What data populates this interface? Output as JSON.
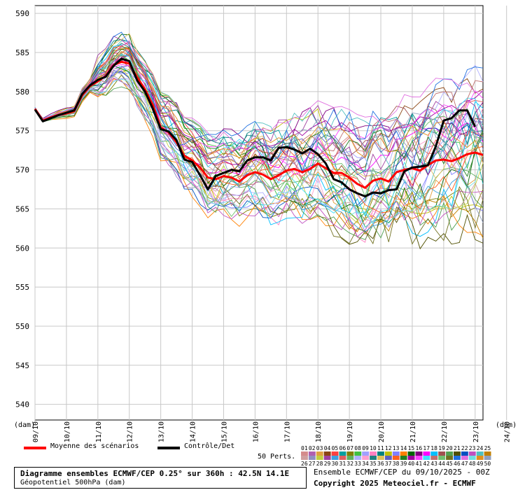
{
  "chart_data": {
    "type": "line",
    "yunit_left": "(dam)",
    "yunit_right": "(dam)",
    "ylim": [
      538,
      591
    ],
    "yticks": [
      540,
      545,
      550,
      555,
      560,
      565,
      570,
      575,
      580,
      585,
      590
    ],
    "xticks": [
      "09/10",
      "10/10",
      "11/10",
      "12/10",
      "13/10",
      "14/10",
      "15/10",
      "16/10",
      "17/10",
      "18/10",
      "19/10",
      "20/10",
      "21/10",
      "22/10",
      "23/10",
      "24/10"
    ],
    "grid": true,
    "x_step_hours": 6,
    "legend": {
      "mean_label": "Moyenne des scénarios",
      "control_label": "Contrôle/Det",
      "perts_label": "50 Perts.",
      "member_numbers_row1": [
        "01",
        "02",
        "03",
        "04",
        "05",
        "06",
        "07",
        "08",
        "09",
        "10",
        "11",
        "12",
        "13",
        "14",
        "15",
        "16",
        "17",
        "18",
        "19",
        "20",
        "21",
        "22",
        "23",
        "24",
        "25"
      ],
      "member_numbers_row2": [
        "26",
        "27",
        "28",
        "29",
        "30",
        "31",
        "32",
        "33",
        "34",
        "35",
        "36",
        "37",
        "38",
        "39",
        "40",
        "41",
        "42",
        "43",
        "44",
        "45",
        "46",
        "47",
        "48",
        "49",
        "50"
      ]
    },
    "series": [
      {
        "name": "Moyenne des scénarios",
        "color": "#ff0000",
        "values": [
          577.8,
          576.3,
          576.7,
          577.0,
          577.2,
          577.5,
          579.5,
          580.7,
          581.3,
          582.0,
          583.4,
          583.8,
          583.6,
          581.8,
          580.3,
          578.3,
          575.4,
          574.8,
          573.5,
          571.8,
          571.2,
          570.3,
          569.0,
          568.8,
          569.2,
          569.0,
          568.5,
          569.3,
          569.7,
          569.4,
          568.8,
          569.3,
          569.9,
          570.1,
          569.7,
          570.1,
          570.8,
          570.2,
          569.6,
          569.6,
          569.0,
          568.2,
          567.7,
          568.6,
          568.9,
          568.5,
          569.7,
          570.0,
          570.2,
          569.9,
          570.6,
          571.2,
          571.3,
          571.1,
          571.5,
          572.0,
          572.2,
          571.9
        ]
      },
      {
        "name": "Contrôle/Det",
        "color": "#000000",
        "values": [
          577.7,
          576.2,
          576.6,
          577.0,
          577.3,
          577.6,
          579.7,
          580.8,
          581.5,
          581.9,
          583.3,
          584.2,
          583.9,
          581.4,
          580.0,
          577.8,
          575.2,
          574.9,
          573.8,
          571.3,
          571.0,
          569.3,
          567.5,
          569.2,
          569.6,
          570.0,
          569.8,
          571.2,
          571.6,
          571.6,
          571.2,
          572.8,
          572.9,
          572.6,
          572.1,
          572.7,
          572.0,
          570.8,
          568.8,
          568.4,
          567.5,
          567.0,
          566.6,
          567.1,
          567.0,
          567.4,
          567.5,
          569.8,
          570.3,
          570.4,
          570.6,
          573.0,
          576.3,
          576.6,
          577.6,
          577.6,
          575.5
        ]
      }
    ],
    "members": {
      "count": 50,
      "colors": [
        "#d48c8c",
        "#b05fb0",
        "#e0a040",
        "#8b4513",
        "#ff4040",
        "#00a0a0",
        "#808000",
        "#40c040",
        "#a0a0ff",
        "#ff80c0",
        "#008080",
        "#c0c000",
        "#8080ff",
        "#ff8000",
        "#006400",
        "#800080",
        "#ff00ff",
        "#00c0ff",
        "#a05050",
        "#50a050",
        "#505000",
        "#0050c0",
        "#c050c0",
        "#50c0c0",
        "#c08000",
        "#d0a0a0",
        "#9090c0",
        "#c0d040",
        "#a040a0",
        "#40a0e0",
        "#e06060",
        "#60b060",
        "#b0b0ff",
        "#ffa0d0",
        "#208080",
        "#e0c060",
        "#6060c0",
        "#ff6020",
        "#208020",
        "#a000a0",
        "#ff40ff",
        "#40e0ff",
        "#c07070",
        "#70c070",
        "#707020",
        "#2070e0",
        "#e070e0",
        "#70e0e0",
        "#e09020",
        "#90a0c0"
      ]
    }
  },
  "footer": {
    "title_line": "Diagramme ensembles ECMWF/CEP 0.25° sur 360h : 42.5N 14.1E",
    "sub_line": "Géopotentiel 500hPa (dam)",
    "run_line": "Ensemble ECMWF/CEP du 09/10/2025 - 00Z",
    "copyright": "Copyright 2025 Meteociel.fr - ECMWF"
  }
}
